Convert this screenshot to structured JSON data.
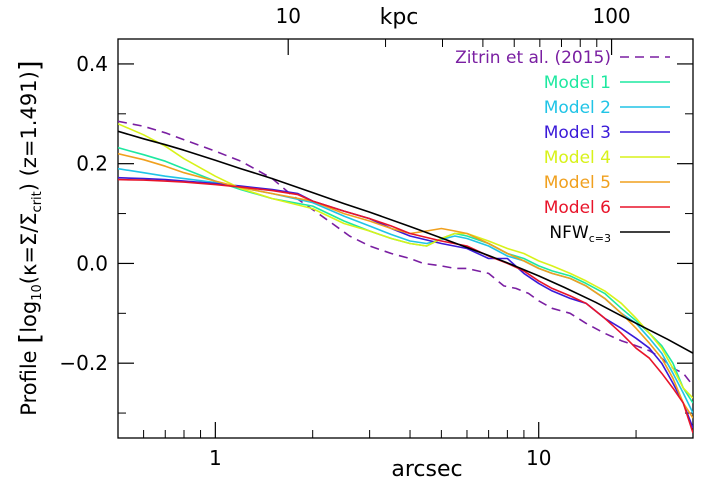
{
  "chart_data": {
    "type": "line",
    "x_scale": "log",
    "xlim": [
      0.5,
      30
    ],
    "ylim": [
      -0.35,
      0.45
    ],
    "xlabel": "arcsec",
    "xlabel_top": "kpc",
    "ylabel": "Profile [log10(κ=Σ/Σcrit) (z=1.491)]",
    "ylabel_parts": {
      "prefix": "Profile ",
      "log": "log",
      "sub10": "10",
      "kappa_expr": "(κ=Σ/Σ",
      "crit": "crit",
      "z_expr": ")  (z=1.491)"
    },
    "x_ticks_major": [
      1,
      10
    ],
    "x_tick_labels": [
      "1",
      "10"
    ],
    "x_ticks_minor": [
      0.6,
      0.7,
      0.8,
      0.9,
      2,
      3,
      4,
      5,
      6,
      7,
      8,
      9,
      20,
      30
    ],
    "top_ticks_major_arcsec": [
      1.68,
      16.8
    ],
    "top_tick_labels": [
      "10",
      "100"
    ],
    "top_ticks_minor_arcsec": [
      3.36,
      5.04,
      6.72,
      8.4,
      10.08,
      11.76,
      13.44,
      15.12,
      33.6
    ],
    "y_ticks": [
      -0.2,
      0.0,
      0.2,
      0.4
    ],
    "y_tick_labels": [
      "−0.2",
      "0.0",
      "0.2",
      "0.4"
    ],
    "grid": false,
    "legend_position": "top-right",
    "series": [
      {
        "name": "Zitrin et al. (2015)",
        "color": "#7a1fa2",
        "dashed": true,
        "x": [
          0.5,
          0.6,
          0.7,
          0.8,
          1.0,
          1.2,
          1.5,
          1.7,
          2.0,
          2.3,
          2.6,
          3.0,
          3.5,
          4.0,
          4.4,
          5.0,
          5.5,
          6.0,
          7.0,
          7.8,
          8.5,
          9.3,
          10.0,
          11.0,
          12.5,
          14.0,
          16.0,
          18.0,
          20.0,
          22.0,
          24.0,
          26.0,
          28.0,
          30.0
        ],
        "y": [
          0.285,
          0.275,
          0.262,
          0.248,
          0.225,
          0.205,
          0.17,
          0.14,
          0.108,
          0.08,
          0.055,
          0.035,
          0.02,
          0.01,
          0.0,
          -0.005,
          -0.01,
          -0.01,
          -0.02,
          -0.045,
          -0.05,
          -0.06,
          -0.075,
          -0.09,
          -0.1,
          -0.12,
          -0.14,
          -0.155,
          -0.165,
          -0.175,
          -0.19,
          -0.21,
          -0.22,
          -0.245
        ]
      },
      {
        "name": "Model 1",
        "color": "#1ee8a0",
        "dashed": false,
        "x": [
          0.5,
          0.6,
          0.7,
          0.8,
          1.0,
          1.2,
          1.5,
          2.0,
          2.5,
          3.0,
          3.5,
          4.0,
          4.5,
          5.0,
          5.5,
          6.0,
          7.0,
          8.0,
          9.0,
          10.0,
          11.0,
          12.5,
          14.0,
          16.0,
          18.0,
          20.0,
          22.0,
          24.0,
          26.0,
          28.0,
          30.0
        ],
        "y": [
          0.232,
          0.218,
          0.205,
          0.19,
          0.165,
          0.148,
          0.13,
          0.115,
          0.085,
          0.065,
          0.05,
          0.04,
          0.035,
          0.05,
          0.06,
          0.055,
          0.04,
          0.02,
          0.01,
          -0.005,
          -0.015,
          -0.025,
          -0.04,
          -0.06,
          -0.09,
          -0.115,
          -0.14,
          -0.165,
          -0.2,
          -0.25,
          -0.28
        ]
      },
      {
        "name": "Model 2",
        "color": "#20c4e6",
        "dashed": false,
        "x": [
          0.5,
          0.6,
          0.7,
          0.8,
          1.0,
          1.2,
          1.5,
          2.0,
          2.5,
          3.0,
          3.5,
          4.0,
          4.5,
          5.0,
          5.5,
          6.0,
          7.0,
          8.0,
          9.0,
          10.0,
          11.0,
          12.5,
          14.0,
          16.0,
          18.0,
          20.0,
          22.0,
          24.0,
          26.0,
          28.0,
          30.0
        ],
        "y": [
          0.19,
          0.182,
          0.175,
          0.17,
          0.162,
          0.152,
          0.14,
          0.122,
          0.095,
          0.075,
          0.058,
          0.045,
          0.04,
          0.048,
          0.055,
          0.05,
          0.035,
          0.015,
          0.005,
          -0.01,
          -0.02,
          -0.03,
          -0.045,
          -0.07,
          -0.1,
          -0.12,
          -0.15,
          -0.18,
          -0.22,
          -0.26,
          -0.3
        ]
      },
      {
        "name": "Model 3",
        "color": "#3a1ad8",
        "dashed": false,
        "x": [
          0.5,
          0.6,
          0.7,
          0.8,
          1.0,
          1.2,
          1.5,
          1.8,
          2.0,
          2.5,
          3.0,
          3.5,
          4.0,
          5.0,
          6.0,
          7.0,
          8.0,
          9.0,
          10.0,
          11.0,
          12.5,
          14.0,
          16.0,
          18.0,
          20.0,
          22.0,
          24.0,
          26.0,
          28.0,
          30.0
        ],
        "y": [
          0.172,
          0.17,
          0.168,
          0.165,
          0.16,
          0.155,
          0.148,
          0.14,
          0.125,
          0.105,
          0.09,
          0.07,
          0.055,
          0.04,
          0.03,
          0.01,
          0.01,
          -0.02,
          -0.04,
          -0.055,
          -0.07,
          -0.08,
          -0.11,
          -0.13,
          -0.15,
          -0.17,
          -0.2,
          -0.24,
          -0.28,
          -0.33
        ]
      },
      {
        "name": "Model 4",
        "color": "#d8f21a",
        "dashed": false,
        "x": [
          0.5,
          0.6,
          0.7,
          0.8,
          1.0,
          1.2,
          1.5,
          2.0,
          2.5,
          3.0,
          3.5,
          4.0,
          4.5,
          5.0,
          5.5,
          6.0,
          7.0,
          8.0,
          9.0,
          10.0,
          11.0,
          12.5,
          14.0,
          16.0,
          18.0,
          20.0,
          22.0,
          24.0,
          26.0,
          28.0,
          30.0
        ],
        "y": [
          0.28,
          0.258,
          0.235,
          0.21,
          0.175,
          0.15,
          0.13,
          0.11,
          0.08,
          0.065,
          0.05,
          0.04,
          0.035,
          0.05,
          0.06,
          0.06,
          0.045,
          0.03,
          0.02,
          0.005,
          -0.005,
          -0.02,
          -0.035,
          -0.055,
          -0.08,
          -0.11,
          -0.14,
          -0.17,
          -0.21,
          -0.25,
          -0.27
        ]
      },
      {
        "name": "Model 5",
        "color": "#f0a01e",
        "dashed": false,
        "x": [
          0.5,
          0.6,
          0.7,
          0.8,
          1.0,
          1.2,
          1.5,
          2.0,
          2.5,
          3.0,
          3.5,
          4.0,
          4.5,
          5.0,
          5.5,
          6.0,
          7.0,
          8.0,
          9.0,
          10.0,
          11.0,
          12.5,
          14.0,
          16.0,
          18.0,
          20.0,
          22.0,
          24.0,
          26.0,
          28.0,
          30.0
        ],
        "y": [
          0.22,
          0.208,
          0.195,
          0.182,
          0.165,
          0.152,
          0.14,
          0.125,
          0.1,
          0.085,
          0.07,
          0.06,
          0.065,
          0.07,
          0.065,
          0.06,
          0.04,
          0.02,
          0.005,
          -0.01,
          -0.02,
          -0.03,
          -0.045,
          -0.07,
          -0.1,
          -0.13,
          -0.16,
          -0.19,
          -0.23,
          -0.28,
          -0.31
        ]
      },
      {
        "name": "Model 6",
        "color": "#e8142a",
        "dashed": false,
        "x": [
          0.5,
          0.6,
          0.7,
          0.8,
          1.0,
          1.2,
          1.5,
          1.8,
          2.0,
          2.5,
          3.0,
          3.5,
          4.0,
          5.0,
          6.0,
          7.0,
          8.0,
          9.0,
          10.0,
          11.0,
          12.5,
          14.0,
          16.0,
          18.0,
          20.0,
          22.0,
          24.0,
          26.0,
          28.0,
          30.0
        ],
        "y": [
          0.168,
          0.167,
          0.165,
          0.163,
          0.158,
          0.153,
          0.146,
          0.138,
          0.125,
          0.105,
          0.09,
          0.075,
          0.06,
          0.045,
          0.035,
          0.015,
          0.0,
          -0.015,
          -0.035,
          -0.05,
          -0.065,
          -0.08,
          -0.11,
          -0.14,
          -0.17,
          -0.19,
          -0.22,
          -0.25,
          -0.28,
          -0.34
        ]
      },
      {
        "name": "NFWc=3",
        "label_main": "NFW",
        "label_sub": "c=3",
        "color": "#000000",
        "dashed": false,
        "x": [
          0.5,
          0.6,
          0.7,
          0.8,
          1.0,
          1.2,
          1.5,
          2.0,
          2.5,
          3.0,
          4.0,
          5.0,
          6.0,
          7.0,
          8.0,
          10.0,
          12.0,
          15.0,
          18.0,
          20.0,
          25.0,
          30.0
        ],
        "y": [
          0.265,
          0.25,
          0.238,
          0.227,
          0.207,
          0.19,
          0.17,
          0.142,
          0.12,
          0.103,
          0.074,
          0.051,
          0.032,
          0.016,
          0.001,
          -0.025,
          -0.048,
          -0.078,
          -0.105,
          -0.12,
          -0.152,
          -0.18
        ]
      }
    ]
  }
}
